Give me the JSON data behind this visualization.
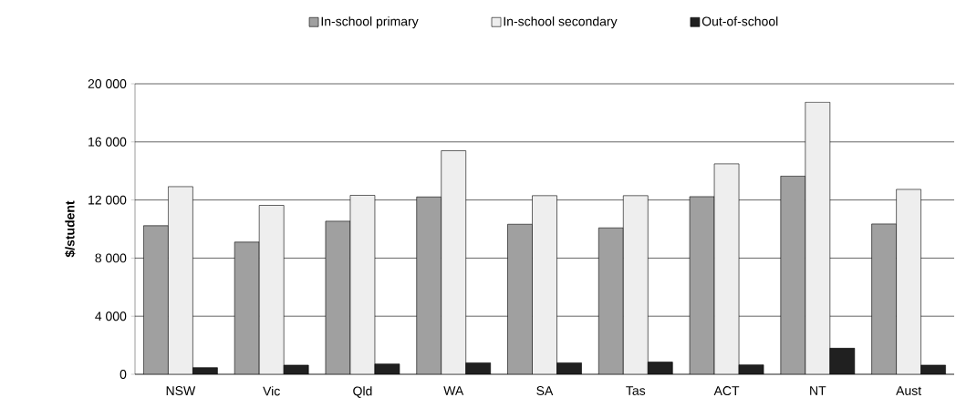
{
  "chart_data": {
    "type": "bar",
    "ylabel": "$/student",
    "categories": [
      "NSW",
      "Vic",
      "Qld",
      "WA",
      "SA",
      "Tas",
      "ACT",
      "NT",
      "Aust"
    ],
    "series": [
      {
        "name": "In-school primary",
        "color": "#a0a0a0",
        "values": [
          10230,
          9100,
          10540,
          12210,
          10330,
          10080,
          12230,
          13650,
          10350
        ]
      },
      {
        "name": "In-school secondary",
        "color": "#eeeeee",
        "values": [
          12920,
          11630,
          12320,
          15390,
          12300,
          12300,
          14490,
          18730,
          12730
        ]
      },
      {
        "name": "Out-of-school",
        "color": "#202020",
        "values": [
          460,
          630,
          710,
          790,
          790,
          840,
          650,
          1800,
          630
        ]
      }
    ],
    "ylim": [
      0,
      20000
    ],
    "yticks": [
      {
        "value": 0,
        "label": "0"
      },
      {
        "value": 4000,
        "label": "4 000"
      },
      {
        "value": 8000,
        "label": "8 000"
      },
      {
        "value": 12000,
        "label": "12 000"
      },
      {
        "value": 16000,
        "label": "16 000"
      },
      {
        "value": 20000,
        "label": "20 000"
      }
    ],
    "grid": "y",
    "legend": "top"
  }
}
